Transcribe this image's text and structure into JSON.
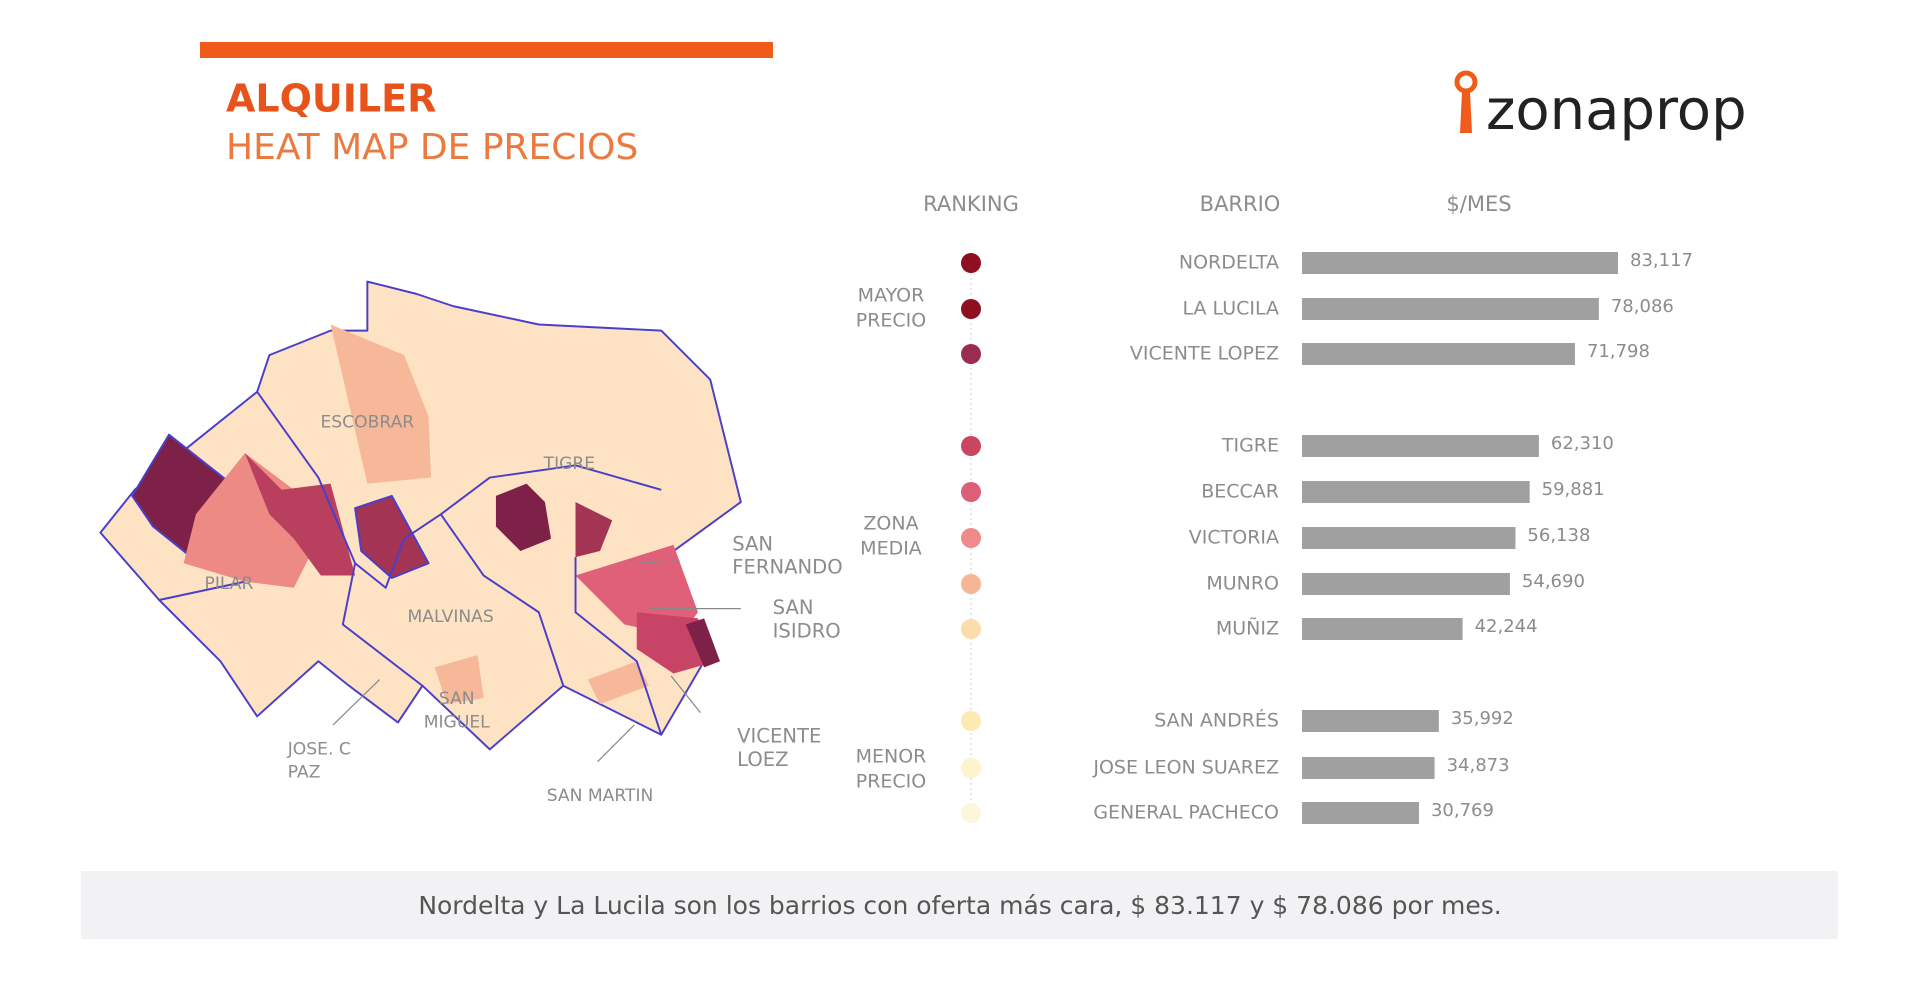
{
  "chart_data": {
    "type": "bar",
    "title": "ALQUILER",
    "subtitle": "HEAT MAP DE PRECIOS",
    "logo": "zonaprop",
    "headers": [
      "RANKING",
      "BARRIO",
      "$/MES"
    ],
    "groups": [
      [
        "MAYOR",
        "PRECIO"
      ],
      [
        "ZONA",
        "MEDIA"
      ],
      [
        "MENOR",
        "PRECIO"
      ]
    ],
    "categories": [
      "NORDELTA",
      "LA LUCILA",
      "VICENTE LOPEZ",
      "TIGRE",
      "BECCAR",
      "VICTORIA",
      "MUNRO",
      "MUÑIZ",
      "SAN ANDRÉS",
      "JOSE LEON SUAREZ",
      "GENERAL PACHECO"
    ],
    "values": [
      83117,
      78086,
      71798,
      62310,
      59881,
      56138,
      54690,
      42244,
      35992,
      34873,
      30769
    ],
    "value_labels": [
      "83,117",
      "78,086",
      "71,798",
      "62,310",
      "59,881",
      "56,138",
      "54,690",
      "42,244",
      "35,992",
      "34,873",
      "30,769"
    ],
    "color": "#a0a0a0",
    "rank_colors": [
      "#8e0f1f",
      "#8e0f1f",
      "#9a2d4f",
      "#c94560",
      "#dc5f77",
      "#f08a88",
      "#f6b595",
      "#fbdcaa",
      "#fde9b2",
      "#fdf3cf",
      "#fdf5dc"
    ],
    "map_labels": [
      [
        "ESCOBRAR"
      ],
      [
        "TIGRE"
      ],
      [
        "PILAR"
      ],
      [
        "MALVINAS"
      ],
      [
        "SAN",
        "MIGUEL"
      ],
      [
        "JOSE. C",
        "PAZ"
      ],
      [
        "SAN MARTIN"
      ],
      [
        "VICENTE",
        "LOEZ"
      ],
      [
        "SAN",
        "ISIDRO"
      ],
      [
        "SAN",
        "FERNANDO"
      ]
    ],
    "note": "Nordelta y La Lucila son los barrios con oferta más cara, $ 83.117 y $ 78.086 por mes."
  }
}
